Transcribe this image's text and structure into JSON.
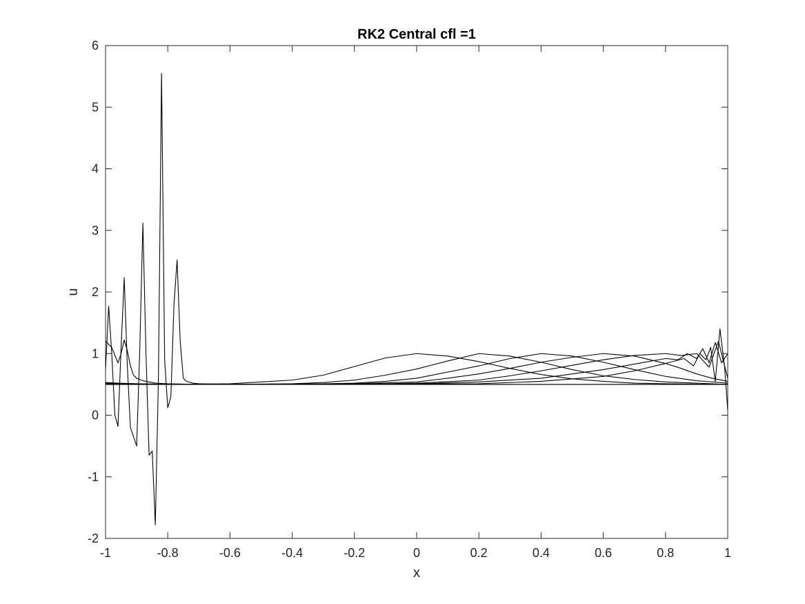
{
  "chart_data": {
    "type": "line",
    "title": "RK2 Central cfl =1",
    "xlabel": "x",
    "ylabel": "u",
    "xlim": [
      -1,
      1
    ],
    "ylim": [
      -2,
      6
    ],
    "xticks": [
      "-1",
      "-0.8",
      "-0.6",
      "-0.4",
      "-0.2",
      "0",
      "0.2",
      "0.4",
      "0.6",
      "0.8",
      "1"
    ],
    "yticks": [
      "-2",
      "-1",
      "0",
      "1",
      "2",
      "3",
      "4",
      "5",
      "6"
    ],
    "xtick_values": [
      -1,
      -0.8,
      -0.6,
      -0.4,
      -0.2,
      0,
      0.2,
      0.4,
      0.6,
      0.8,
      1
    ],
    "ytick_values": [
      -2,
      -1,
      0,
      1,
      2,
      3,
      4,
      5,
      6
    ],
    "grid": false,
    "line_color": "#000000",
    "series": [
      {
        "x": [
          -1,
          -0.96,
          -0.9,
          -0.8,
          -0.6,
          -0.4,
          -0.3,
          -0.2,
          -0.1,
          0,
          0.1,
          0.2,
          0.3,
          0.4,
          0.5,
          0.6,
          0.7,
          0.8,
          0.9,
          1
        ],
        "y": [
          0.53,
          0.52,
          0.51,
          0.5,
          0.51,
          0.57,
          0.65,
          0.79,
          0.93,
          1.0,
          0.96,
          0.87,
          0.76,
          0.66,
          0.59,
          0.55,
          0.52,
          0.51,
          0.505,
          0.5
        ]
      },
      {
        "x": [
          -1,
          -0.8,
          -0.6,
          -0.4,
          -0.3,
          -0.2,
          -0.1,
          0,
          0.1,
          0.2,
          0.3,
          0.4,
          0.5,
          0.6,
          0.7,
          0.8,
          0.9,
          1
        ],
        "y": [
          0.52,
          0.5,
          0.5,
          0.51,
          0.53,
          0.57,
          0.65,
          0.75,
          0.88,
          1.0,
          0.96,
          0.86,
          0.74,
          0.64,
          0.58,
          0.54,
          0.52,
          0.5
        ]
      },
      {
        "x": [
          -1,
          -0.6,
          -0.4,
          -0.2,
          -0.1,
          0,
          0.1,
          0.2,
          0.3,
          0.4,
          0.5,
          0.6,
          0.7,
          0.8,
          0.9,
          1
        ],
        "y": [
          0.51,
          0.5,
          0.5,
          0.52,
          0.55,
          0.6,
          0.7,
          0.8,
          0.92,
          1.0,
          0.96,
          0.86,
          0.74,
          0.63,
          0.56,
          0.52
        ]
      },
      {
        "x": [
          -1,
          -0.4,
          -0.2,
          0,
          0.1,
          0.2,
          0.3,
          0.4,
          0.5,
          0.6,
          0.7,
          0.8,
          0.85,
          0.9,
          0.95,
          1
        ],
        "y": [
          0.5,
          0.5,
          0.51,
          0.54,
          0.6,
          0.67,
          0.76,
          0.86,
          0.94,
          1.0,
          0.96,
          0.84,
          0.76,
          0.67,
          0.6,
          0.55
        ]
      },
      {
        "x": [
          -1,
          -0.2,
          0,
          0.2,
          0.3,
          0.4,
          0.5,
          0.6,
          0.7,
          0.8,
          0.85,
          0.9,
          0.94,
          0.97,
          1
        ],
        "y": [
          0.5,
          0.5,
          0.52,
          0.57,
          0.64,
          0.72,
          0.81,
          0.9,
          0.97,
          1.0,
          0.97,
          1.0,
          0.78,
          1.2,
          0.6
        ]
      },
      {
        "x": [
          -1,
          0,
          0.2,
          0.4,
          0.5,
          0.6,
          0.7,
          0.8,
          0.84,
          0.87,
          0.9,
          0.92,
          0.94,
          0.96,
          0.98,
          1
        ],
        "y": [
          0.5,
          0.51,
          0.54,
          0.6,
          0.67,
          0.74,
          0.83,
          0.92,
          0.9,
          1.0,
          0.92,
          1.08,
          0.85,
          1.18,
          0.85,
          1.0
        ]
      },
      {
        "x": [
          -1,
          0.2,
          0.4,
          0.6,
          0.7,
          0.8,
          0.86,
          0.89,
          0.91,
          0.93,
          0.945,
          0.96,
          0.975,
          0.99,
          1
        ],
        "y": [
          0.5,
          0.51,
          0.55,
          0.63,
          0.72,
          0.84,
          0.92,
          0.8,
          1.0,
          0.9,
          1.1,
          0.55,
          1.4,
          0.78,
          0.08
        ]
      },
      {
        "x": [
          -1,
          -0.99,
          -0.98,
          -0.97,
          -0.96,
          -0.95,
          -0.94,
          -0.93,
          -0.92,
          -0.91,
          -0.9,
          -0.89,
          -0.88,
          -0.87,
          -0.86,
          -0.85,
          -0.84,
          -0.83,
          -0.82,
          -0.81,
          -0.8,
          -0.79,
          -0.78,
          -0.77,
          -0.76,
          -0.75,
          -0.74,
          -0.72,
          -0.7,
          -0.6,
          -0.2,
          0.2,
          0.6,
          1
        ],
        "y": [
          0.75,
          1.77,
          1.0,
          0.0,
          -0.18,
          1.1,
          2.23,
          0.8,
          -0.2,
          -0.35,
          -0.5,
          1.05,
          3.12,
          1.0,
          -0.65,
          -0.58,
          -1.78,
          0.6,
          5.55,
          0.9,
          0.12,
          0.3,
          1.8,
          2.52,
          1.2,
          0.6,
          0.55,
          0.52,
          0.51,
          0.5,
          0.5,
          0.5,
          0.5,
          0.5
        ]
      },
      {
        "x": [
          -1,
          -0.98,
          -0.96,
          -0.95,
          -0.94,
          -0.93,
          -0.92,
          -0.91,
          -0.9,
          -0.88,
          -0.86,
          -0.84,
          -0.8,
          -0.7,
          -0.4,
          0,
          0.4,
          0.8,
          1
        ],
        "y": [
          1.2,
          1.1,
          0.85,
          1.0,
          1.22,
          1.05,
          0.8,
          0.65,
          0.6,
          0.56,
          0.54,
          0.52,
          0.51,
          0.5,
          0.5,
          0.5,
          0.5,
          0.5,
          0.5
        ]
      }
    ]
  }
}
